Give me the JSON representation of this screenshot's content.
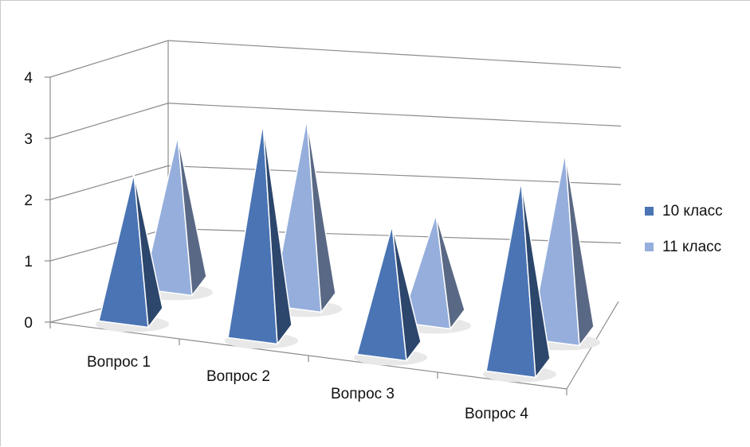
{
  "chart_data": {
    "type": "bar",
    "style": "3d-pyramid",
    "categories": [
      "Вопрос 1",
      "Вопрос 2",
      "Вопрос 3",
      "Вопрос 4"
    ],
    "series": [
      {
        "name": "10 класс",
        "values": [
          2.3,
          3.4,
          2.0,
          3.0
        ],
        "color": "#4a74b4"
      },
      {
        "name": "11 класс",
        "values": [
          2.6,
          3.2,
          1.8,
          3.2
        ],
        "color": "#95aedc"
      }
    ],
    "yticks": [
      "0",
      "1",
      "2",
      "3",
      "4"
    ],
    "ylim": [
      0,
      4
    ],
    "grid": true,
    "legend_position": "right"
  }
}
